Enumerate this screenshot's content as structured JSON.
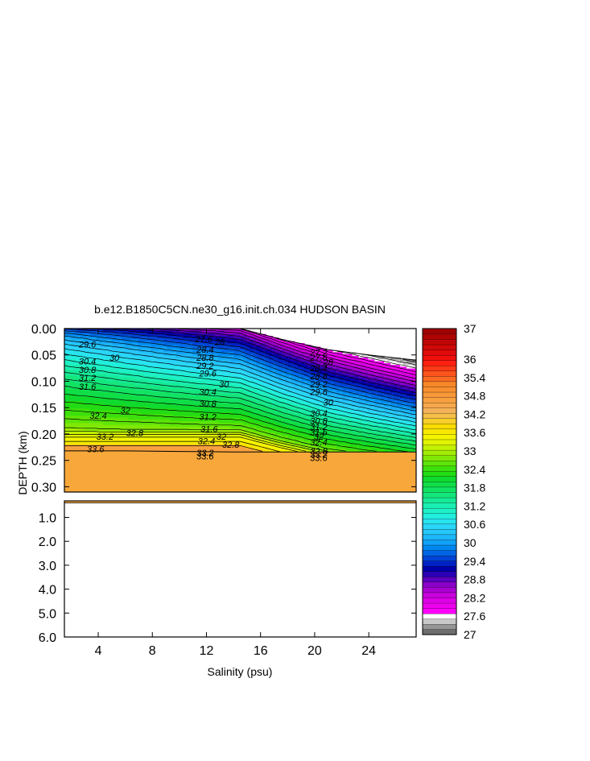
{
  "chart_data": {
    "type": "heatmap",
    "title": "b.e12.B1850C5CN.ne30_g16.init.ch.034 HUDSON BASIN",
    "xlabel": "Salinity (psu)",
    "ylabel": "DEPTH (km)",
    "xlim": [
      1.5,
      27.5
    ],
    "x_ticks": [
      {
        "value": 4,
        "label": "4"
      },
      {
        "value": 8,
        "label": "8"
      },
      {
        "value": 12,
        "label": "12"
      },
      {
        "value": 16,
        "label": "16"
      },
      {
        "value": 20,
        "label": "20"
      },
      {
        "value": 24,
        "label": "24"
      }
    ],
    "upper_panel": {
      "ylim": [
        0.0,
        0.31
      ],
      "y_ticks": [
        {
          "value": 0.0,
          "label": "0.00"
        },
        {
          "value": 0.05,
          "label": "0.05"
        },
        {
          "value": 0.1,
          "label": "0.10"
        },
        {
          "value": 0.15,
          "label": "0.15"
        },
        {
          "value": 0.2,
          "label": "0.20"
        },
        {
          "value": 0.25,
          "label": "0.25"
        },
        {
          "value": 0.3,
          "label": "0.30"
        }
      ]
    },
    "lower_panel": {
      "ylim": [
        0.31,
        6.0
      ],
      "y_ticks": [
        {
          "value": 1.0,
          "label": "1.0"
        },
        {
          "value": 2.0,
          "label": "2.0"
        },
        {
          "value": 3.0,
          "label": "3.0"
        },
        {
          "value": 4.0,
          "label": "4.0"
        },
        {
          "value": 5.0,
          "label": "5.0"
        },
        {
          "value": 6.0,
          "label": "6.0"
        }
      ]
    },
    "surface_depth": [
      [
        1.5,
        0.0
      ],
      [
        10.5,
        0.0
      ],
      [
        14.5,
        0.0
      ],
      [
        17.5,
        0.02
      ],
      [
        21,
        0.04
      ],
      [
        24,
        0.05
      ],
      [
        27.5,
        0.06
      ]
    ],
    "seafloor_depth": [
      [
        1.5,
        0.232
      ],
      [
        4,
        0.232
      ],
      [
        6,
        0.232
      ],
      [
        10,
        0.233
      ],
      [
        14,
        0.234
      ],
      [
        16,
        0.234
      ],
      [
        19,
        0.234
      ],
      [
        22,
        0.234
      ],
      [
        27.5,
        0.234
      ]
    ],
    "contour_levels": [
      27.0,
      27.2,
      27.4,
      27.6,
      27.8,
      28.0,
      28.2,
      28.4,
      28.6,
      28.8,
      29.0,
      29.2,
      29.4,
      29.6,
      29.8,
      30.0,
      30.2,
      30.4,
      30.6,
      30.8,
      31.0,
      31.2,
      31.4,
      31.6,
      31.8,
      32.0,
      32.2,
      32.4,
      32.6,
      32.8,
      33.0,
      33.2,
      33.4,
      33.6,
      33.8
    ],
    "contour_labels": [
      {
        "x": 3.2,
        "y": 0.03,
        "label": "29.6"
      },
      {
        "x": 5.2,
        "y": 0.055,
        "label": "30"
      },
      {
        "x": 3.2,
        "y": 0.062,
        "label": "30.4"
      },
      {
        "x": 3.2,
        "y": 0.078,
        "label": "30.8"
      },
      {
        "x": 3.2,
        "y": 0.093,
        "label": "31.2"
      },
      {
        "x": 3.2,
        "y": 0.11,
        "label": "31.6"
      },
      {
        "x": 4.0,
        "y": 0.165,
        "label": "32.4"
      },
      {
        "x": 6.0,
        "y": 0.155,
        "label": "32"
      },
      {
        "x": 6.7,
        "y": 0.198,
        "label": "32.8"
      },
      {
        "x": 4.5,
        "y": 0.205,
        "label": "33.2"
      },
      {
        "x": 3.8,
        "y": 0.228,
        "label": "33.6"
      },
      {
        "x": 11.8,
        "y": 0.02,
        "label": "27.6"
      },
      {
        "x": 13.0,
        "y": 0.025,
        "label": "28"
      },
      {
        "x": 11.9,
        "y": 0.04,
        "label": "28.4"
      },
      {
        "x": 11.9,
        "y": 0.055,
        "label": "28.8"
      },
      {
        "x": 11.9,
        "y": 0.07,
        "label": "29.2"
      },
      {
        "x": 12.1,
        "y": 0.085,
        "label": "29.6"
      },
      {
        "x": 13.3,
        "y": 0.105,
        "label": "30"
      },
      {
        "x": 12.1,
        "y": 0.12,
        "label": "30.4"
      },
      {
        "x": 12.1,
        "y": 0.142,
        "label": "30.8"
      },
      {
        "x": 12.1,
        "y": 0.167,
        "label": "31.2"
      },
      {
        "x": 12.2,
        "y": 0.19,
        "label": "31.6"
      },
      {
        "x": 13.1,
        "y": 0.205,
        "label": "32"
      },
      {
        "x": 12.0,
        "y": 0.213,
        "label": "32.4"
      },
      {
        "x": 13.8,
        "y": 0.22,
        "label": "32.8"
      },
      {
        "x": 11.9,
        "y": 0.235,
        "label": "33.2"
      },
      {
        "x": 11.9,
        "y": 0.242,
        "label": "33.6"
      },
      {
        "x": 20.3,
        "y": 0.045,
        "label": "27.2"
      },
      {
        "x": 20.3,
        "y": 0.055,
        "label": "27.6"
      },
      {
        "x": 21.0,
        "y": 0.063,
        "label": "28"
      },
      {
        "x": 20.3,
        "y": 0.075,
        "label": "28.4"
      },
      {
        "x": 20.3,
        "y": 0.09,
        "label": "28.8"
      },
      {
        "x": 20.3,
        "y": 0.105,
        "label": "29.2"
      },
      {
        "x": 20.3,
        "y": 0.12,
        "label": "29.6"
      },
      {
        "x": 21.0,
        "y": 0.14,
        "label": "30"
      },
      {
        "x": 20.3,
        "y": 0.16,
        "label": "30.4"
      },
      {
        "x": 20.3,
        "y": 0.175,
        "label": "30.8"
      },
      {
        "x": 20.3,
        "y": 0.186,
        "label": "31.2"
      },
      {
        "x": 20.3,
        "y": 0.196,
        "label": "31.6"
      },
      {
        "x": 20.3,
        "y": 0.205,
        "label": "32"
      },
      {
        "x": 20.3,
        "y": 0.215,
        "label": "32.4"
      },
      {
        "x": 20.3,
        "y": 0.232,
        "label": "32.8"
      },
      {
        "x": 20.3,
        "y": 0.238,
        "label": "33.2"
      },
      {
        "x": 20.3,
        "y": 0.245,
        "label": "33.6"
      }
    ],
    "colorbar": {
      "min": 27,
      "max": 37,
      "tick_labels": [
        "37",
        "36",
        "35.4",
        "34.8",
        "34.2",
        "33.6",
        "33",
        "32.4",
        "31.8",
        "31.2",
        "30.6",
        "30",
        "29.4",
        "28.8",
        "28.2",
        "27.6",
        "27"
      ],
      "colors": [
        "#6e6e6e",
        "#969696",
        "#c8c8c8",
        "#ffffff",
        "#ff00ff",
        "#ee00ee",
        "#dd00e6",
        "#c800dc",
        "#aa00d2",
        "#8a00c8",
        "#5a00be",
        "#2a00b4",
        "#0000aa",
        "#0022c4",
        "#0044d6",
        "#0066e6",
        "#0088f0",
        "#10a2f6",
        "#1eb6f8",
        "#26c8fa",
        "#2ad6f8",
        "#28e4f0",
        "#22eede",
        "#1ef0c8",
        "#1aeeb0",
        "#16ea96",
        "#14e67c",
        "#12e262",
        "#10de48",
        "#10da2e",
        "#22dc14",
        "#3ce00c",
        "#5ee408",
        "#80e806",
        "#a2ec04",
        "#c4f002",
        "#e2f400",
        "#f4f400",
        "#f8e800",
        "#fadc00",
        "#f8ce2a",
        "#f6c048",
        "#f4b25a",
        "#f6a84a",
        "#f8a040",
        "#f89838",
        "#f89030",
        "#f88828",
        "#fa6a22",
        "#fc541c",
        "#ff3a16",
        "#ff2010",
        "#f0100c",
        "#e00a0a",
        "#d00808",
        "#c00606",
        "#b00404",
        "#a00202"
      ]
    }
  }
}
